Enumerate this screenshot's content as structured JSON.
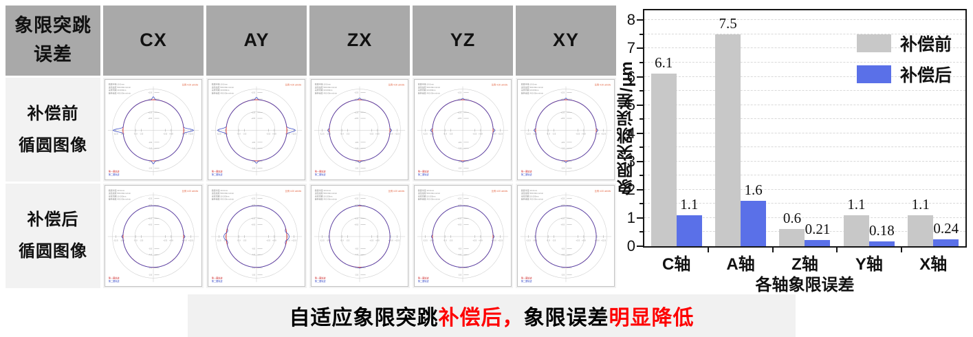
{
  "table": {
    "header": {
      "corner": {
        "line1": "象限突跳",
        "line2": "误差"
      },
      "columns": [
        "CX",
        "AY",
        "ZX",
        "YZ",
        "XY"
      ]
    },
    "rows": [
      {
        "label": {
          "line1": "补偿前",
          "line2": "循圆图像"
        },
        "plots": [
          {
            "col": "CX",
            "spikes": [
              {
                "deg": 0,
                "m": 15,
                "w": 3
              },
              {
                "deg": 180,
                "m": 15,
                "w": 3
              },
              {
                "deg": 90,
                "m": 4.5,
                "w": 2.5
              },
              {
                "deg": 270,
                "m": 4.5,
                "w": 2.5
              }
            ]
          },
          {
            "col": "AY",
            "spikes": [
              {
                "deg": 0,
                "m": 13,
                "w": 3.5
              },
              {
                "deg": 180,
                "m": 13,
                "w": 3.5
              },
              {
                "deg": 90,
                "m": 3.5,
                "w": 2.5
              },
              {
                "deg": 270,
                "m": 3.5,
                "w": 2.5
              }
            ]
          },
          {
            "col": "ZX",
            "spikes": [
              {
                "deg": 0,
                "m": 2.5,
                "w": 2.5
              },
              {
                "deg": 90,
                "m": 2.5,
                "w": 2.5
              },
              {
                "deg": 180,
                "m": 2.5,
                "w": 2.5
              },
              {
                "deg": 270,
                "m": 2.5,
                "w": 2.5
              }
            ]
          },
          {
            "col": "YZ",
            "spikes": [
              {
                "deg": 0,
                "m": 3,
                "w": 2.5
              },
              {
                "deg": 180,
                "m": 3,
                "w": 2.5
              },
              {
                "deg": 90,
                "m": 2,
                "w": 2.5
              },
              {
                "deg": 270,
                "m": 2,
                "w": 2.5
              }
            ]
          },
          {
            "col": "XY",
            "spikes": [
              {
                "deg": 0,
                "m": 2.5,
                "w": 2.5
              },
              {
                "deg": 180,
                "m": 2.5,
                "w": 2.5
              },
              {
                "deg": 90,
                "m": 2.5,
                "w": 2
              },
              {
                "deg": 270,
                "m": 2.5,
                "w": 2
              }
            ]
          }
        ]
      },
      {
        "label": {
          "line1": "补偿后",
          "line2": "循圆图像"
        },
        "plots": [
          {
            "col": "CX",
            "spikes": [
              {
                "deg": 0,
                "m": 2,
                "w": 2.5
              },
              {
                "deg": 180,
                "m": 2,
                "w": 2.5
              }
            ]
          },
          {
            "col": "AY",
            "spikes": [
              {
                "deg": 0,
                "m": 3.5,
                "w": 7
              },
              {
                "deg": 10,
                "m": -2,
                "w": 4
              },
              {
                "deg": -10,
                "m": -2,
                "w": 4
              },
              {
                "deg": 180,
                "m": 3.5,
                "w": 7
              },
              {
                "deg": 190,
                "m": -2,
                "w": 4
              },
              {
                "deg": 170,
                "m": -2,
                "w": 4
              }
            ]
          },
          {
            "col": "ZX",
            "spikes": [
              {
                "deg": 90,
                "m": 1.2,
                "w": 2.5
              },
              {
                "deg": 270,
                "m": 1.2,
                "w": 2.5
              }
            ]
          },
          {
            "col": "YZ",
            "spikes": [
              {
                "deg": 0,
                "m": 1.5,
                "w": 2.5
              },
              {
                "deg": 180,
                "m": 1.5,
                "w": 2.5
              }
            ]
          },
          {
            "col": "XY",
            "spikes": []
          }
        ]
      }
    ]
  },
  "plot_common": {
    "info_lines": [
      "循圆半径:10.0mm",
      "进给速度:500.00mm/min",
      "采样周期:10.000ms",
      "旋转速度:400.00mm/min"
    ],
    "scale_label": "比例 4.00 um/div",
    "h_tick_labels": [
      "-12.5",
      "-10.0",
      "-5.0",
      "-2.5",
      "+2.5",
      "+5.0",
      "+10.0",
      "+12.5"
    ],
    "v_tick_labels": [
      "+2.5",
      "+2.0",
      "+1.0",
      "+0.5",
      "-0.5",
      "-1.0",
      "-2.0",
      "-2.5"
    ],
    "legend": [
      {
        "label": "第一圈轨迹",
        "color": "#d03030"
      },
      {
        "label": "第二圈轨迹",
        "color": "#3b4cc8"
      }
    ]
  },
  "chart_data": {
    "type": "bar",
    "title": "",
    "categories": [
      "C轴",
      "A轴",
      "Z轴",
      "Y轴",
      "X轴"
    ],
    "series": [
      {
        "name": "补偿前",
        "color": "#c8c8c8",
        "values": [
          6.1,
          7.5,
          0.6,
          1.1,
          1.1
        ],
        "labels": [
          "6.1",
          "7.5",
          "0.6",
          "1.1",
          "1.1"
        ]
      },
      {
        "name": "补偿后",
        "color": "#5a70e8",
        "values": [
          1.1,
          1.6,
          0.21,
          0.18,
          0.24
        ],
        "labels": [
          "1.1",
          "1.6",
          "0.21",
          "0.18",
          "0.24"
        ]
      }
    ],
    "xlabel": "各轴象限误差",
    "ylabel": "象限突跳误差/μm",
    "ylim": [
      0,
      8.35
    ],
    "yticks": [
      0,
      1,
      2,
      3,
      4,
      5,
      6,
      7,
      8
    ],
    "grid": "horizontal dashed every 0.5",
    "legend_position": "top-right"
  },
  "banner": {
    "segments": [
      {
        "text": "自适应象限突跳",
        "color": "#000000"
      },
      {
        "text": "补偿后，",
        "color": "#fe0000"
      },
      {
        "text": "象限误差",
        "color": "#000000"
      },
      {
        "text": "明显降低",
        "color": "#fe0000"
      }
    ]
  }
}
